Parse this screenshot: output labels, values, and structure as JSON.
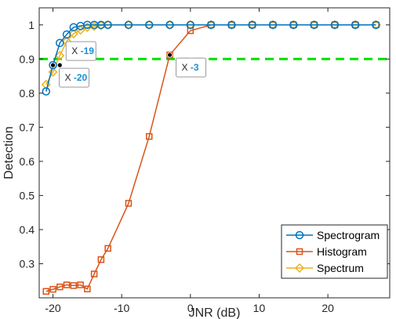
{
  "chart_data": {
    "type": "line",
    "xlabel": "JNR (dB)",
    "ylabel": "Detection",
    "xlim": [
      -22,
      29
    ],
    "ylim": [
      0.2,
      1.05
    ],
    "x_ticks": [
      -20,
      -10,
      0,
      10,
      20
    ],
    "y_ticks": [
      0.3,
      0.4,
      0.5,
      0.6,
      0.7,
      0.8,
      0.9,
      1
    ],
    "x_tick_labels": [
      "-20",
      "-10",
      "0",
      "10",
      "20"
    ],
    "y_tick_labels": [
      "0.3",
      "0.4",
      "0.5",
      "0.6",
      "0.7",
      "0.8",
      "0.9",
      "1"
    ],
    "grid": false,
    "legend_position": "bottom-right",
    "threshold": {
      "y": 0.9,
      "color": "#00e000",
      "style": "dashed"
    },
    "series": [
      {
        "name": "Spectrogram",
        "color": "#0072bd",
        "marker": "circle",
        "x": [
          -21,
          -20,
          -19,
          -18,
          -17,
          -16,
          -15,
          -14,
          -13,
          -12,
          -9,
          -6,
          -3,
          0,
          3,
          6,
          9,
          12,
          15,
          18,
          21,
          24,
          27
        ],
        "y": [
          0.805,
          0.882,
          0.947,
          0.972,
          0.993,
          0.997,
          1,
          1,
          1,
          1,
          1,
          1,
          1,
          1,
          1,
          1,
          1,
          1,
          1,
          1,
          1,
          1,
          1
        ]
      },
      {
        "name": "Histogram",
        "color": "#d95319",
        "marker": "square",
        "x": [
          -21,
          -20,
          -19,
          -18,
          -17,
          -16,
          -15,
          -14,
          -13,
          -12,
          -9,
          -6,
          -3,
          0,
          3,
          6,
          9,
          12,
          15,
          18,
          21,
          24,
          27
        ],
        "y": [
          0.219,
          0.225,
          0.232,
          0.238,
          0.236,
          0.238,
          0.226,
          0.27,
          0.312,
          0.345,
          0.477,
          0.673,
          0.912,
          0.983,
          1,
          1,
          1,
          1,
          1,
          1,
          1,
          1,
          1
        ]
      },
      {
        "name": "Spectrum",
        "color": "#edb120",
        "marker": "diamond",
        "x": [
          -21,
          -20,
          -19,
          -18,
          -17,
          -16,
          -15,
          -14,
          -13,
          -12,
          -9,
          -6,
          -3,
          0,
          3,
          6,
          9,
          12,
          15,
          18,
          21,
          24,
          27
        ],
        "y": [
          0.825,
          0.862,
          0.91,
          0.952,
          0.974,
          0.985,
          0.993,
          0.996,
          0.998,
          1,
          1,
          1,
          1,
          1,
          1,
          1,
          1,
          1,
          1,
          1,
          1,
          1,
          1
        ]
      }
    ],
    "datatips": [
      {
        "x": -20,
        "y": 0.882,
        "prefix": "X",
        "value": "-20",
        "anchor_side": "below"
      },
      {
        "x": -19,
        "y": 0.882,
        "prefix": "X",
        "value": "-19",
        "anchor_side": "above"
      },
      {
        "x": -3,
        "y": 0.912,
        "prefix": "X",
        "value": "-3",
        "anchor_side": "below"
      }
    ]
  }
}
